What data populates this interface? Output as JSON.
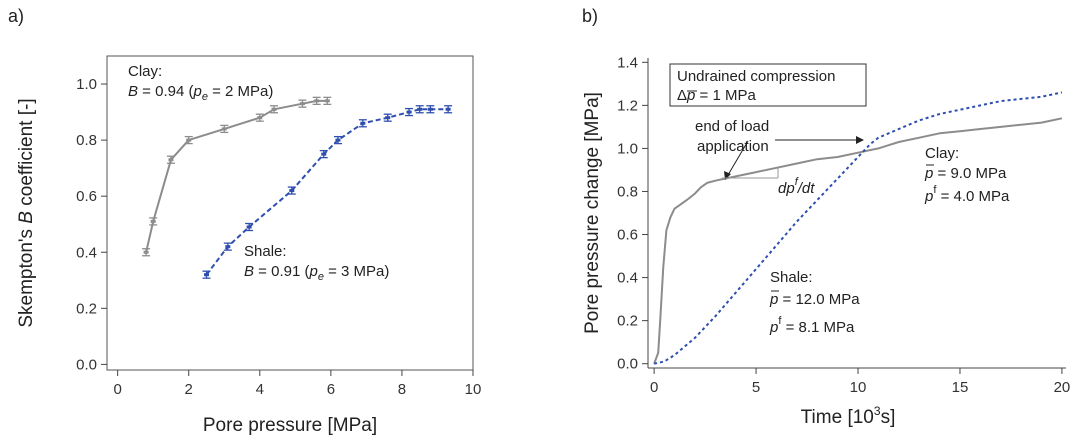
{
  "panels": [
    "a)",
    "b)"
  ],
  "chart_data": [
    {
      "type": "line",
      "panel_label": "a)",
      "xlabel": "Pore pressure [MPa]",
      "ylabel_parts": [
        "Skempton's ",
        "B",
        " coefficient [-]"
      ],
      "xlim": [
        -0.3,
        10
      ],
      "ylim": [
        -0.02,
        1.1
      ],
      "xticks": [
        0,
        2,
        4,
        6,
        8,
        10
      ],
      "yticks": [
        0.0,
        0.2,
        0.4,
        0.6,
        0.8,
        1.0
      ],
      "xtick_labels": [
        "0",
        "2",
        "4",
        "6",
        "8",
        "10"
      ],
      "ytick_labels": [
        "0.0",
        "0.2",
        "0.4",
        "0.6",
        "0.8",
        "1.0"
      ],
      "grid": false,
      "series": [
        {
          "name": "Clay",
          "color": "#8c8c8c",
          "line_style": "solid",
          "error_bars": true,
          "x": [
            0.8,
            1.0,
            1.5,
            2.0,
            3.0,
            4.0,
            4.4,
            5.2,
            5.6,
            5.9
          ],
          "y": [
            0.4,
            0.51,
            0.73,
            0.8,
            0.84,
            0.88,
            0.91,
            0.93,
            0.94,
            0.94
          ]
        },
        {
          "name": "Shale",
          "color": "#2f4fb0",
          "line_style": "dashed",
          "error_bars": true,
          "x": [
            2.5,
            3.1,
            3.7,
            4.9,
            5.8,
            6.2,
            6.9,
            7.6,
            8.2,
            8.5,
            8.8,
            9.3
          ],
          "y": [
            0.32,
            0.42,
            0.49,
            0.62,
            0.75,
            0.8,
            0.86,
            0.88,
            0.9,
            0.91,
            0.91,
            0.91
          ]
        }
      ],
      "annotations": {
        "clay": {
          "title": "Clay:",
          "b_symbol": "B",
          "b_value": " = 0.94 (",
          "pe_symbol": "p",
          "pe_sub": "e",
          "pe_value": " = 2 MPa)"
        },
        "shale": {
          "title": "Shale:",
          "b_symbol": "B",
          "b_value": " = 0.91 (",
          "pe_symbol": "p",
          "pe_sub": "e",
          "pe_value": " = 3 MPa)"
        }
      }
    },
    {
      "type": "line",
      "panel_label": "b)",
      "xlabel_parts": [
        "Time [10",
        "3",
        "s]"
      ],
      "ylabel": "Pore pressure change [MPa]",
      "xlim": [
        -0.3,
        20.2
      ],
      "ylim": [
        -0.02,
        1.42
      ],
      "xticks": [
        0,
        5,
        10,
        15,
        20
      ],
      "yticks": [
        0.0,
        0.2,
        0.4,
        0.6,
        0.8,
        1.0,
        1.2,
        1.4
      ],
      "xtick_labels": [
        "0",
        "5",
        "10",
        "15",
        "20"
      ],
      "ytick_labels": [
        "0.0",
        "0.2",
        "0.4",
        "0.6",
        "0.8",
        "1.0",
        "1.2",
        "1.4"
      ],
      "grid": false,
      "series": [
        {
          "name": "Clay",
          "color": "#8c8c8c",
          "line_style": "solid",
          "x": [
            0,
            0.2,
            0.3,
            0.45,
            0.6,
            0.8,
            1.0,
            1.3,
            1.6,
            2.0,
            2.3,
            2.6,
            3.0,
            4.0,
            5.0,
            6.0,
            7.0,
            8.0,
            9.0,
            10.0,
            11.0,
            12.0,
            13.0,
            14.0,
            15.0,
            16.0,
            17.0,
            18.0,
            19.0,
            20.0
          ],
          "y": [
            0,
            0.05,
            0.2,
            0.45,
            0.62,
            0.68,
            0.72,
            0.74,
            0.76,
            0.79,
            0.82,
            0.84,
            0.85,
            0.87,
            0.89,
            0.91,
            0.93,
            0.95,
            0.96,
            0.98,
            1.0,
            1.03,
            1.05,
            1.07,
            1.08,
            1.09,
            1.1,
            1.11,
            1.12,
            1.14
          ]
        },
        {
          "name": "Shale",
          "color": "#2f4fb0",
          "line_style": "dotted",
          "x": [
            0,
            0.5,
            1.0,
            1.5,
            2.0,
            3.0,
            4.0,
            5.0,
            6.0,
            7.0,
            8.0,
            9.0,
            10.0,
            10.6,
            11.0,
            12.0,
            13.0,
            14.0,
            15.0,
            16.0,
            17.0,
            18.0,
            19.0,
            20.0
          ],
          "y": [
            0,
            0.01,
            0.04,
            0.08,
            0.12,
            0.22,
            0.33,
            0.44,
            0.55,
            0.66,
            0.76,
            0.86,
            0.96,
            1.02,
            1.05,
            1.09,
            1.13,
            1.16,
            1.18,
            1.2,
            1.22,
            1.23,
            1.24,
            1.26
          ]
        }
      ],
      "annotations": {
        "box_line1": "Undrained compression",
        "box_delta": "Δ",
        "box_p": "p",
        "box_value": " = 1 MPa",
        "end_load_line1": "end of load",
        "end_load_line2": "application",
        "dpdt_prefix": "dp",
        "dpdt_sup": "f",
        "dpdt_suffix": "/dt",
        "clay_title": "Clay:",
        "clay_pbar_sym": "p",
        "clay_pbar_value": " = 9.0 MPa",
        "clay_pf_sym": "p",
        "clay_pf_sup": "f",
        "clay_pf_value": " = 4.0 MPa",
        "shale_title": "Shale:",
        "shale_pbar_sym": "p",
        "shale_pbar_value": " = 12.0 MPa",
        "shale_pf_sym": "p",
        "shale_pf_sup": "f",
        "shale_pf_value": " = 8.1 MPa"
      }
    }
  ]
}
